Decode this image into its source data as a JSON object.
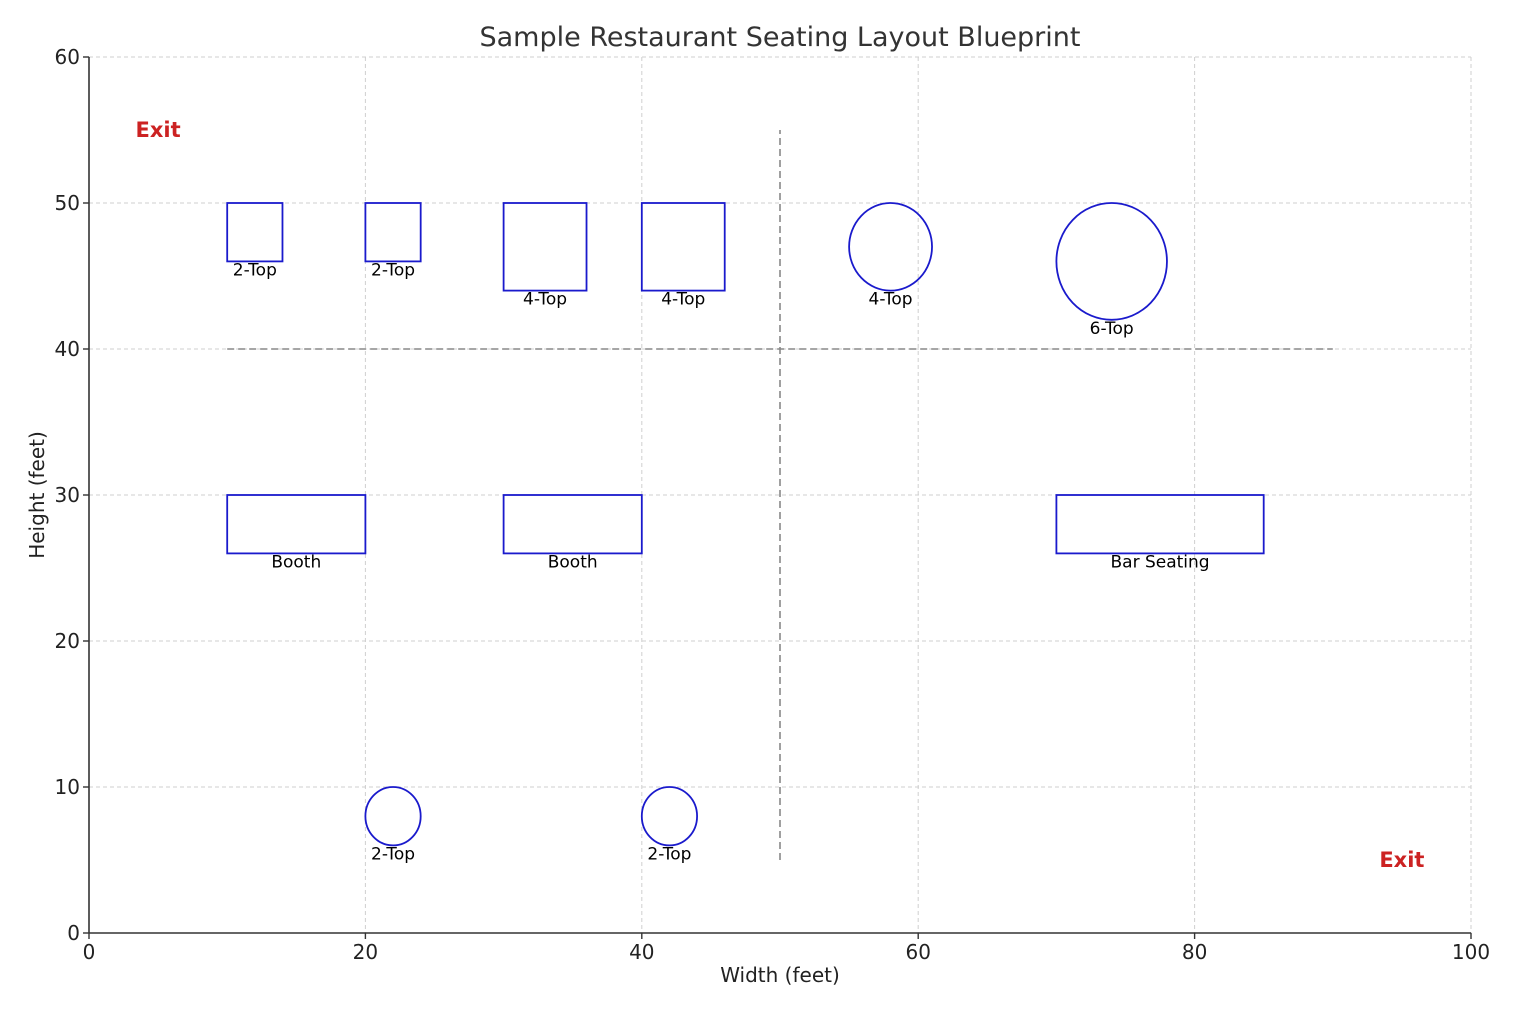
{
  "chart_data": {
    "type": "floor_plan",
    "title": "Sample Restaurant Seating Layout Blueprint",
    "xlabel": "Width (feet)",
    "ylabel": "Height (feet)",
    "xlim": [
      0,
      100
    ],
    "ylim": [
      0,
      60
    ],
    "xticks": [
      0,
      20,
      40,
      60,
      80,
      100
    ],
    "yticks": [
      0,
      10,
      20,
      30,
      40,
      50,
      60
    ],
    "grid": true,
    "colors": {
      "table_outline": "#1a1acc",
      "exit_text": "#cc2222",
      "divider": "#888888",
      "grid": "#cfcfcf"
    },
    "tables": [
      {
        "shape": "rect",
        "label": "2-Top",
        "x": 10,
        "y": 46,
        "width": 4,
        "height": 4
      },
      {
        "shape": "rect",
        "label": "2-Top",
        "x": 20,
        "y": 46,
        "width": 4,
        "height": 4
      },
      {
        "shape": "rect",
        "label": "4-Top",
        "x": 30,
        "y": 44,
        "width": 6,
        "height": 6
      },
      {
        "shape": "rect",
        "label": "4-Top",
        "x": 40,
        "y": 44,
        "width": 6,
        "height": 6
      },
      {
        "shape": "circle",
        "label": "4-Top",
        "cx": 58,
        "cy": 47,
        "r": 3
      },
      {
        "shape": "circle",
        "label": "6-Top",
        "cx": 74,
        "cy": 46,
        "r": 4
      },
      {
        "shape": "rect",
        "label": "Booth",
        "x": 10,
        "y": 26,
        "width": 10,
        "height": 4
      },
      {
        "shape": "rect",
        "label": "Booth",
        "x": 30,
        "y": 26,
        "width": 10,
        "height": 4
      },
      {
        "shape": "rect",
        "label": "Bar Seating",
        "x": 70,
        "y": 26,
        "width": 15,
        "height": 4
      },
      {
        "shape": "circle",
        "label": "2-Top",
        "cx": 22,
        "cy": 8,
        "r": 2
      },
      {
        "shape": "circle",
        "label": "2-Top",
        "cx": 42,
        "cy": 8,
        "r": 2
      }
    ],
    "dividers": [
      {
        "x1": 10,
        "y1": 40,
        "x2": 90,
        "y2": 40
      },
      {
        "x1": 50,
        "y1": 5,
        "x2": 50,
        "y2": 55
      }
    ],
    "exits": [
      {
        "label": "Exit",
        "x": 5,
        "y": 55
      },
      {
        "label": "Exit",
        "x": 95,
        "y": 5
      }
    ]
  }
}
